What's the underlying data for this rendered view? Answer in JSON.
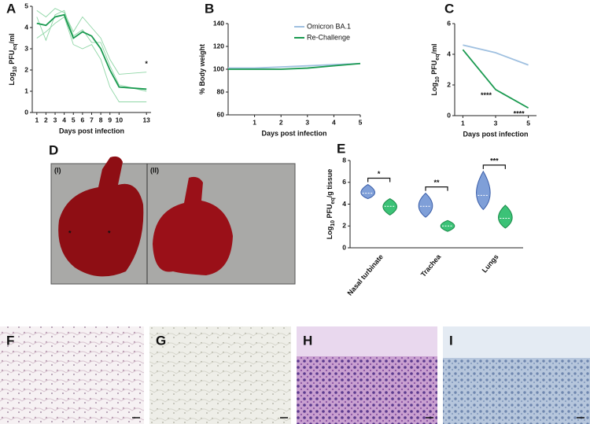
{
  "chart_data": [
    {
      "label": "A",
      "type": "line",
      "x": [
        1,
        2,
        3,
        4,
        5,
        6,
        7,
        8,
        9,
        10,
        13
      ],
      "xlim": [
        0.5,
        13.5
      ],
      "xticks": [
        1,
        2,
        3,
        4,
        5,
        6,
        7,
        8,
        9,
        10,
        13
      ],
      "ylim": [
        0,
        5
      ],
      "yticks": [
        0,
        1,
        2,
        3,
        4,
        5
      ],
      "xlabel": "Days post infection",
      "ylabel_parts": [
        "Log",
        "10",
        " PFU",
        "eq",
        "/ml"
      ],
      "series": [
        {
          "color": "#8fd6a6",
          "values": [
            4.8,
            4.5,
            4.9,
            4.7,
            3.8,
            4.5,
            4.0,
            3.5,
            2.5,
            1.8,
            1.9
          ]
        },
        {
          "color": "#8fd6a6",
          "values": [
            3.5,
            3.8,
            4.2,
            4.5,
            3.2,
            3.0,
            3.2,
            2.5,
            1.2,
            0.5,
            0.5
          ]
        },
        {
          "color": "#8fd6a6",
          "values": [
            4.5,
            3.4,
            4.6,
            4.8,
            3.6,
            3.9,
            3.3,
            3.3,
            2.2,
            1.3,
            1.0
          ]
        },
        {
          "color": "#1a9a50",
          "values": [
            4.2,
            4.1,
            4.5,
            4.6,
            3.5,
            3.8,
            3.6,
            3.0,
            2.0,
            1.2,
            1.1
          ]
        }
      ],
      "annotations": [
        {
          "text": "*",
          "x": 13,
          "color": "#e0463c"
        }
      ]
    },
    {
      "label": "B",
      "type": "line",
      "x": [
        0,
        1,
        2,
        3,
        4,
        5
      ],
      "xlim": [
        0,
        5
      ],
      "xticks": [
        1,
        2,
        3,
        4,
        5
      ],
      "ylim": [
        60,
        140
      ],
      "yticks": [
        60,
        80,
        100,
        120,
        140
      ],
      "xlabel": "Days post infection",
      "ylabel_parts": [
        "% Body weight"
      ],
      "series": [
        {
          "name": "Omicron BA.1",
          "color": "#9fc0e0",
          "values": [
            101,
            101,
            102,
            103,
            104,
            105
          ]
        },
        {
          "name": "Re-Challenge",
          "color": "#1a9a50",
          "values": [
            100,
            100,
            100,
            101,
            103,
            105
          ]
        }
      ],
      "legend": "top-right"
    },
    {
      "label": "C",
      "type": "line",
      "x": [
        1,
        3,
        5
      ],
      "xlim": [
        0.5,
        5.5
      ],
      "xticks": [
        1,
        3,
        5
      ],
      "ylim": [
        0,
        6
      ],
      "yticks": [
        0,
        2,
        4,
        6
      ],
      "xlabel": "Days post infection",
      "ylabel_parts": [
        "Log",
        "10",
        " PFU",
        "eq",
        "/ml"
      ],
      "series": [
        {
          "color": "#9fc0e0",
          "values": [
            4.6,
            4.1,
            3.3
          ]
        },
        {
          "color": "#1a9a50",
          "values": [
            4.3,
            1.7,
            0.5
          ]
        }
      ],
      "annotations": [
        {
          "text": "****",
          "x": 3,
          "color": "#111"
        },
        {
          "text": "****",
          "x": 5,
          "color": "#111"
        }
      ]
    },
    {
      "label": "E",
      "type": "violin",
      "categories": [
        "Nasal turbinate",
        "Trachea",
        "Lungs"
      ],
      "ylim": [
        0,
        8
      ],
      "yticks": [
        0,
        2,
        4,
        6,
        8
      ],
      "ylabel_parts": [
        "Log",
        "10",
        " PFU",
        "eq",
        "/g tissue"
      ],
      "series": [
        {
          "color": "#7f9fd8",
          "values": [
            5.0,
            3.8,
            4.8
          ],
          "mins": [
            4.5,
            2.8,
            3.5
          ],
          "maxs": [
            5.8,
            5.0,
            7.0
          ]
        },
        {
          "color": "#3cc277",
          "values": [
            3.8,
            2.0,
            2.7
          ],
          "mins": [
            3.0,
            1.5,
            1.8
          ],
          "maxs": [
            4.5,
            2.5,
            3.9
          ]
        }
      ],
      "significance": [
        "*",
        "**",
        "***"
      ]
    }
  ],
  "photo_panel": {
    "label": "D",
    "sublabels": [
      "(I)",
      "(II)"
    ],
    "markers": [
      "*",
      "*"
    ]
  },
  "histology_panels": [
    {
      "label": "F"
    },
    {
      "label": "G"
    },
    {
      "label": "H"
    },
    {
      "label": "I"
    }
  ]
}
